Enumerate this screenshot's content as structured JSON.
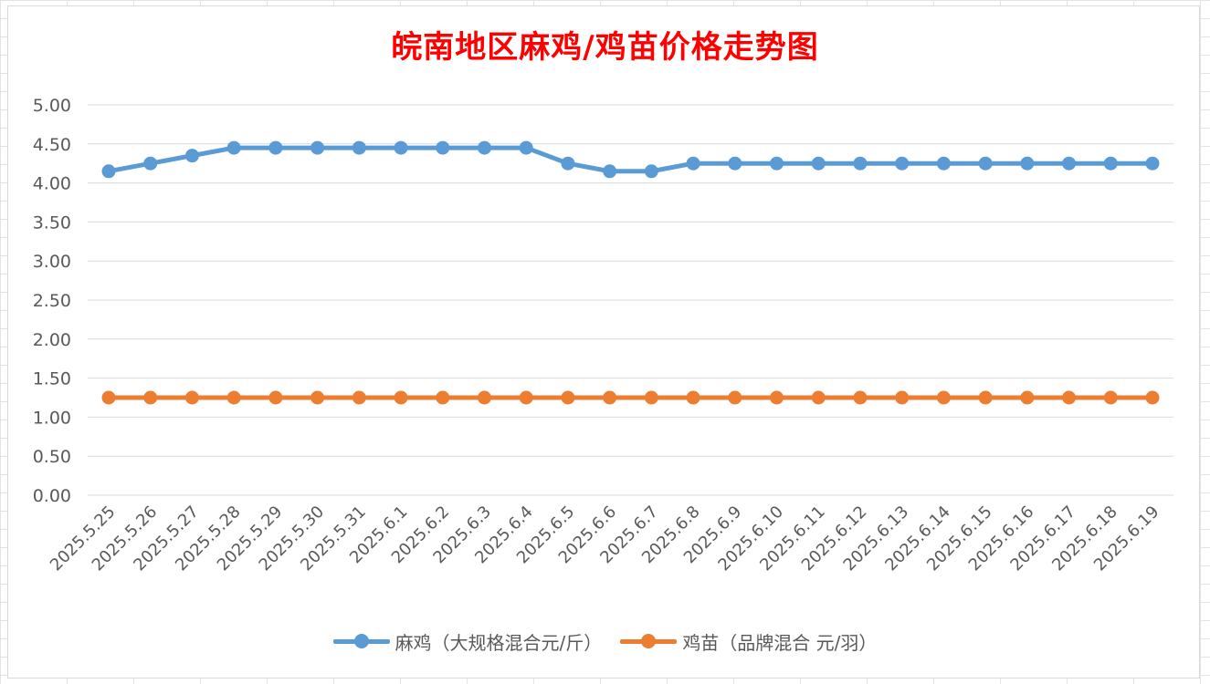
{
  "chart_data": {
    "type": "line",
    "title": "皖南地区麻鸡/鸡苗价格走势图",
    "categories": [
      "2025.5.25",
      "2025.5.26",
      "2025.5.27",
      "2025.5.28",
      "2025.5.29",
      "2025.5.30",
      "2025.5.31",
      "2025.6.1",
      "2025.6.2",
      "2025.6.3",
      "2025.6.4",
      "2025.6.5",
      "2025.6.6",
      "2025.6.7",
      "2025.6.8",
      "2025.6.9",
      "2025.6.10",
      "2025.6.11",
      "2025.6.12",
      "2025.6.13",
      "2025.6.14",
      "2025.6.15",
      "2025.6.16",
      "2025.6.17",
      "2025.6.18",
      "2025.6.19"
    ],
    "series": [
      {
        "name": "麻鸡（大规格混合元/斤）",
        "color": "#5b9bd5",
        "values": [
          4.15,
          4.25,
          4.35,
          4.45,
          4.45,
          4.45,
          4.45,
          4.45,
          4.45,
          4.45,
          4.45,
          4.25,
          4.15,
          4.15,
          4.25,
          4.25,
          4.25,
          4.25,
          4.25,
          4.25,
          4.25,
          4.25,
          4.25,
          4.25,
          4.25,
          4.25
        ]
      },
      {
        "name": "鸡苗（品牌混合 元/羽）",
        "color": "#ed7d31",
        "values": [
          1.25,
          1.25,
          1.25,
          1.25,
          1.25,
          1.25,
          1.25,
          1.25,
          1.25,
          1.25,
          1.25,
          1.25,
          1.25,
          1.25,
          1.25,
          1.25,
          1.25,
          1.25,
          1.25,
          1.25,
          1.25,
          1.25,
          1.25,
          1.25,
          1.25,
          1.25
        ]
      }
    ],
    "ylim": [
      0,
      5
    ],
    "yticks": [
      "0.00",
      "0.50",
      "1.00",
      "1.50",
      "2.00",
      "2.50",
      "3.00",
      "3.50",
      "4.00",
      "4.50",
      "5.00"
    ],
    "grid": true,
    "legend_position": "bottom",
    "xlabel": "",
    "ylabel": ""
  }
}
